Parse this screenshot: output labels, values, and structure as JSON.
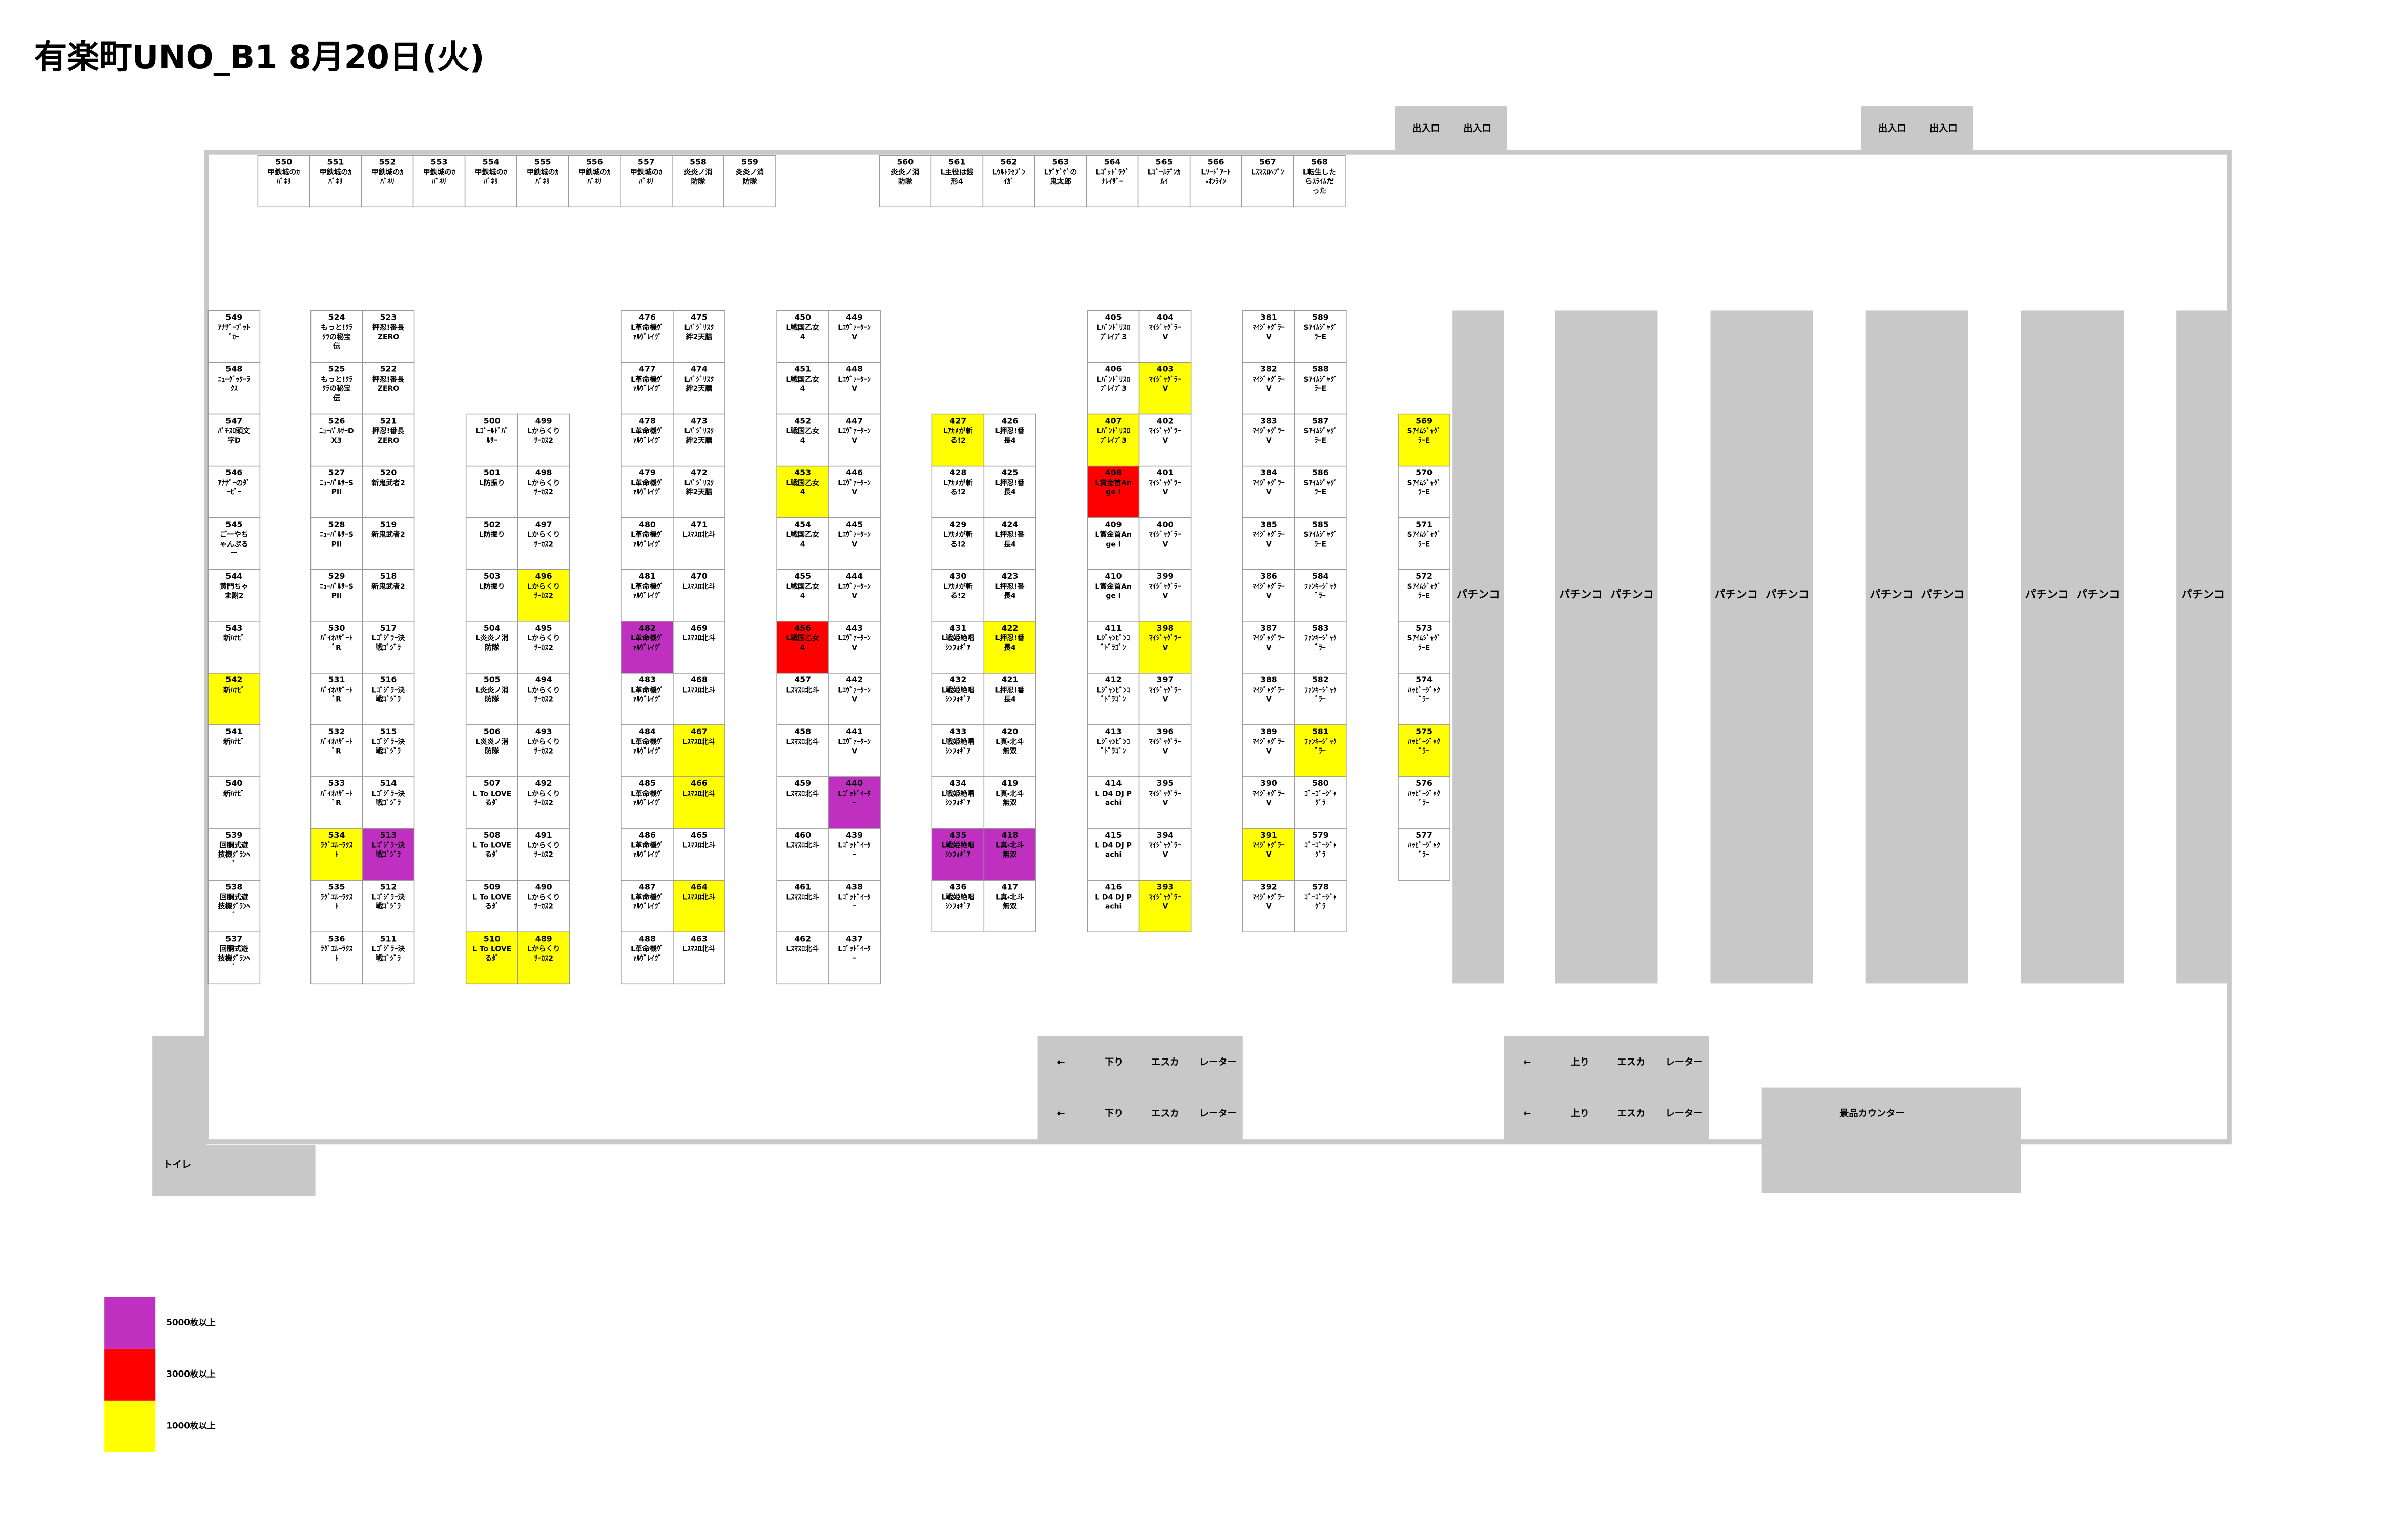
{
  "header": {
    "title": "有楽町UNO_B1 8月20日(火)"
  },
  "entrances": [
    {
      "labels": [
        "出入口",
        "出入口"
      ]
    },
    {
      "labels": [
        "出入口",
        "出入口"
      ]
    }
  ],
  "columns": [
    {
      "machines": [
        {
          "no": "550",
          "name": "甲鉄城のｶﾊﾞﾈﾘ"
        },
        {
          "no": "551",
          "name": "甲鉄城のｶﾊﾞﾈﾘ"
        },
        {
          "no": "552",
          "name": "甲鉄城のｶﾊﾞﾈﾘ"
        },
        {
          "no": "553",
          "name": "甲鉄城のｶﾊﾞﾈﾘ"
        },
        {
          "no": "554",
          "name": "甲鉄城のｶﾊﾞﾈﾘ"
        },
        {
          "no": "555",
          "name": "甲鉄城のｶﾊﾞﾈﾘ"
        },
        {
          "no": "556",
          "name": "甲鉄城のｶﾊﾞﾈﾘ"
        },
        {
          "no": "557",
          "name": "甲鉄城のｶﾊﾞﾈﾘ"
        },
        {
          "no": "558",
          "name": "炎炎ノ消防隊"
        },
        {
          "no": "559",
          "name": "炎炎ノ消防隊"
        }
      ]
    },
    {
      "machines": [
        {
          "no": "560",
          "name": "炎炎ノ消防隊"
        },
        {
          "no": "561",
          "name": "L主役は銭形4"
        },
        {
          "no": "562",
          "name": "Lｳﾙﾄﾗｾﾌﾞﾝｲｶﾞ"
        },
        {
          "no": "563",
          "name": "Lｹﾞｹﾞｹﾞの鬼太郎"
        },
        {
          "no": "564",
          "name": "Lｺﾞｯﾄﾞﾗｸﾞﾅﾚｲｻﾞｰ"
        },
        {
          "no": "565",
          "name": "Lｺﾞｰﾙﾃﾞﾝｶﾑｲ"
        },
        {
          "no": "566",
          "name": "Lｿｰﾄﾞｱｰﾄ・ｵﾝﾗｲﾝ"
        },
        {
          "no": "567",
          "name": "Lｽﾏｽﾛﾍﾌﾞﾝ"
        },
        {
          "no": "568",
          "name": "L転生したらｽﾗｲﾑだった"
        }
      ]
    },
    {
      "machines": [
        {
          "no": "549",
          "name": "ｱﾅｻﾞｰﾌﾟｯﾄﾞｶｰ"
        },
        {
          "no": "548",
          "name": "ﾆｭｰｸﾞｯﾀｰﾗｸｽ"
        },
        {
          "no": "547",
          "name": "ﾊﾟﾁｽﾛ頭文字D"
        },
        {
          "no": "546",
          "name": "ｱﾅｻﾞｰのﾀﾞｰﾋﾞｰ"
        },
        {
          "no": "545",
          "name": "ごーやちゃんぷるー"
        },
        {
          "no": "544",
          "name": "黄門ちゃま謝2"
        },
        {
          "no": "543",
          "name": "新ﾊﾅﾋﾞ"
        },
        {
          "no": "542",
          "name": "新ﾊﾅﾋﾞ",
          "color": "#ffff00"
        },
        {
          "no": "541",
          "name": "新ﾊﾅﾋﾞ"
        },
        {
          "no": "540",
          "name": "新ﾊﾅﾋﾞ"
        },
        {
          "no": "539",
          "name": "回胴式遊技機ｸﾞﾗﾝﾍﾞ"
        },
        {
          "no": "538",
          "name": "回胴式遊技機ｸﾞﾗﾝﾍﾞ"
        },
        {
          "no": "537",
          "name": "回胴式遊技機ｸﾞﾗﾝﾍﾞ"
        }
      ]
    },
    {
      "machines": [
        {
          "no": "524",
          "name": "もっと!ｸﾗｸﾗの秘宝伝"
        },
        {
          "no": "525",
          "name": "もっと!ｸﾗｸﾗの秘宝伝"
        },
        {
          "no": "526",
          "name": "ﾆｭｰﾊﾟﾙｻｰDX3"
        },
        {
          "no": "527",
          "name": "ﾆｭｰﾊﾟﾙｻｰSPII"
        },
        {
          "no": "528",
          "name": "ﾆｭｰﾊﾟﾙｻｰSPII"
        },
        {
          "no": "529",
          "name": "ﾆｭｰﾊﾟﾙｻｰSPII"
        },
        {
          "no": "530",
          "name": "ﾊﾞｲｵﾊｻﾞｰﾄﾞR"
        },
        {
          "no": "531",
          "name": "ﾊﾞｲｵﾊｻﾞｰﾄﾞR"
        },
        {
          "no": "532",
          "name": "ﾊﾞｲｵﾊｻﾞｰﾄﾞR"
        },
        {
          "no": "533",
          "name": "ﾊﾞｲｵﾊｻﾞｰﾄﾞR"
        },
        {
          "no": "534",
          "name": "ﾗｸﾞｴﾙｰﾗｸｽﾄ",
          "color": "#ffff00"
        },
        {
          "no": "535",
          "name": "ﾗｸﾞｴﾙｰﾗｸｽﾄ"
        },
        {
          "no": "536",
          "name": "ﾗｸﾞｴﾙｰﾗｸｽﾄ"
        }
      ]
    },
    {
      "machines": [
        {
          "no": "523",
          "name": "押忍!番長ZERO"
        },
        {
          "no": "522",
          "name": "押忍!番長ZERO"
        },
        {
          "no": "521",
          "name": "押忍!番長ZERO"
        },
        {
          "no": "520",
          "name": "新鬼武者2"
        },
        {
          "no": "519",
          "name": "新鬼武者2"
        },
        {
          "no": "518",
          "name": "新鬼武者2"
        },
        {
          "no": "517",
          "name": "Lｺﾞｼﾞﾗｰ決戦ｺﾞｼﾞﾗ"
        },
        {
          "no": "516",
          "name": "Lｺﾞｼﾞﾗｰ決戦ｺﾞｼﾞﾗ"
        },
        {
          "no": "515",
          "name": "Lｺﾞｼﾞﾗｰ決戦ｺﾞｼﾞﾗ"
        },
        {
          "no": "514",
          "name": "Lｺﾞｼﾞﾗｰ決戦ｺﾞｼﾞﾗ"
        },
        {
          "no": "513",
          "name": "Lｺﾞｼﾞﾗｰ決戦ｺﾞｼﾞﾗ",
          "color": "#c030c0"
        },
        {
          "no": "512",
          "name": "Lｺﾞｼﾞﾗｰ決戦ｺﾞｼﾞﾗ"
        },
        {
          "no": "511",
          "name": "Lｺﾞｼﾞﾗｰ決戦ｺﾞｼﾞﾗ"
        }
      ]
    },
    {
      "machines": [
        {
          "no": "500",
          "name": "Lｺﾞｰﾙﾄﾞﾊﾞﾙｻｰ"
        },
        {
          "no": "501",
          "name": "L防振り"
        },
        {
          "no": "502",
          "name": "L防振り"
        },
        {
          "no": "503",
          "name": "L防振り"
        },
        {
          "no": "504",
          "name": "L炎炎ノ消防隊"
        },
        {
          "no": "505",
          "name": "L炎炎ノ消防隊"
        },
        {
          "no": "506",
          "name": "L炎炎ノ消防隊"
        },
        {
          "no": "507",
          "name": "L To LOVEるﾀﾞ"
        },
        {
          "no": "508",
          "name": "L To LOVEるﾀﾞ"
        },
        {
          "no": "509",
          "name": "L To LOVEるﾀﾞ"
        },
        {
          "no": "510",
          "name": "L To LOVEるﾀﾞ",
          "color": "#ffff00"
        }
      ]
    },
    {
      "machines": [
        {
          "no": "499",
          "name": "Lからくりｻｰｶｽ2"
        },
        {
          "no": "498",
          "name": "Lからくりｻｰｶｽ2"
        },
        {
          "no": "497",
          "name": "Lからくりｻｰｶｽ2"
        },
        {
          "no": "496",
          "name": "Lからくりｻｰｶｽ2",
          "color": "#ffff00"
        },
        {
          "no": "495",
          "name": "Lからくりｻｰｶｽ2"
        },
        {
          "no": "494",
          "name": "Lからくりｻｰｶｽ2"
        },
        {
          "no": "493",
          "name": "Lからくりｻｰｶｽ2"
        },
        {
          "no": "492",
          "name": "Lからくりｻｰｶｽ2"
        },
        {
          "no": "491",
          "name": "Lからくりｻｰｶｽ2"
        },
        {
          "no": "490",
          "name": "Lからくりｻｰｶｽ2"
        },
        {
          "no": "489",
          "name": "Lからくりｻｰｶｽ2",
          "color": "#ffff00"
        }
      ]
    },
    {
      "machines": [
        {
          "no": "476",
          "name": "L革命機ｳﾞｧﾙｳﾞﾚｲｳﾞ"
        },
        {
          "no": "477",
          "name": "L革命機ｳﾞｧﾙｳﾞﾚｲｳﾞ"
        },
        {
          "no": "478",
          "name": "L革命機ｳﾞｧﾙｳﾞﾚｲｳﾞ"
        },
        {
          "no": "479",
          "name": "L革命機ｳﾞｧﾙｳﾞﾚｲｳﾞ"
        },
        {
          "no": "480",
          "name": "L革命機ｳﾞｧﾙｳﾞﾚｲｳﾞ"
        },
        {
          "no": "481",
          "name": "L革命機ｳﾞｧﾙｳﾞﾚｲｳﾞ"
        },
        {
          "no": "482",
          "name": "L革命機ｳﾞｧﾙｳﾞﾚｲｳﾞ",
          "color": "#c030c0"
        },
        {
          "no": "483",
          "name": "L革命機ｳﾞｧﾙｳﾞﾚｲｳﾞ"
        },
        {
          "no": "484",
          "name": "L革命機ｳﾞｧﾙｳﾞﾚｲｳﾞ"
        },
        {
          "no": "485",
          "name": "L革命機ｳﾞｧﾙｳﾞﾚｲｳﾞ"
        },
        {
          "no": "486",
          "name": "L革命機ｳﾞｧﾙｳﾞﾚｲｳﾞ"
        },
        {
          "no": "487",
          "name": "L革命機ｳﾞｧﾙｳﾞﾚｲｳﾞ"
        },
        {
          "no": "488",
          "name": "L革命機ｳﾞｧﾙｳﾞﾚｲｳﾞ"
        }
      ]
    },
    {
      "machines": [
        {
          "no": "475",
          "name": "Lﾊﾞｼﾞﾘｽｸ絆2天膳"
        },
        {
          "no": "474",
          "name": "Lﾊﾞｼﾞﾘｽｸ絆2天膳"
        },
        {
          "no": "473",
          "name": "Lﾊﾞｼﾞﾘｽｸ絆2天膳"
        },
        {
          "no": "472",
          "name": "Lﾊﾞｼﾞﾘｽｸ絆2天膳"
        },
        {
          "no": "471",
          "name": "Lｽﾏｽﾛ北斗"
        },
        {
          "no": "470",
          "name": "Lｽﾏｽﾛ北斗"
        },
        {
          "no": "469",
          "name": "Lｽﾏｽﾛ北斗"
        },
        {
          "no": "468",
          "name": "Lｽﾏｽﾛ北斗"
        },
        {
          "no": "467",
          "name": "Lｽﾏｽﾛ北斗",
          "color": "#ffff00"
        },
        {
          "no": "466",
          "name": "Lｽﾏｽﾛ北斗",
          "color": "#ffff00"
        },
        {
          "no": "465",
          "name": "Lｽﾏｽﾛ北斗"
        },
        {
          "no": "464",
          "name": "Lｽﾏｽﾛ北斗",
          "color": "#ffff00"
        },
        {
          "no": "463",
          "name": "Lｽﾏｽﾛ北斗"
        }
      ]
    },
    {
      "machines": [
        {
          "no": "450",
          "name": "L戦国乙女4"
        },
        {
          "no": "451",
          "name": "L戦国乙女4"
        },
        {
          "no": "452",
          "name": "L戦国乙女4"
        },
        {
          "no": "453",
          "name": "L戦国乙女4",
          "color": "#ffff00"
        },
        {
          "no": "454",
          "name": "L戦国乙女4"
        },
        {
          "no": "455",
          "name": "L戦国乙女4"
        },
        {
          "no": "456",
          "name": "L戦国乙女4",
          "color": "#ff0000"
        },
        {
          "no": "457",
          "name": "Lｽﾏｽﾛ北斗"
        },
        {
          "no": "458",
          "name": "Lｽﾏｽﾛ北斗"
        },
        {
          "no": "459",
          "name": "Lｽﾏｽﾛ北斗"
        },
        {
          "no": "460",
          "name": "Lｽﾏｽﾛ北斗"
        },
        {
          "no": "461",
          "name": "Lｽﾏｽﾛ北斗"
        },
        {
          "no": "462",
          "name": "Lｽﾏｽﾛ北斗"
        }
      ]
    },
    {
      "machines": [
        {
          "no": "449",
          "name": "LｴｳﾞｧｰﾀｰﾝV"
        },
        {
          "no": "448",
          "name": "LｴｳﾞｧｰﾀｰﾝV"
        },
        {
          "no": "447",
          "name": "LｴｳﾞｧｰﾀｰﾝV"
        },
        {
          "no": "446",
          "name": "LｴｳﾞｧｰﾀｰﾝV"
        },
        {
          "no": "445",
          "name": "LｴｳﾞｧｰﾀｰﾝV"
        },
        {
          "no": "444",
          "name": "LｴｳﾞｧｰﾀｰﾝV"
        },
        {
          "no": "443",
          "name": "LｴｳﾞｧｰﾀｰﾝV"
        },
        {
          "no": "442",
          "name": "LｴｳﾞｧｰﾀｰﾝV"
        },
        {
          "no": "441",
          "name": "LｴｳﾞｧｰﾀｰﾝV"
        },
        {
          "no": "440",
          "name": "Lｺﾞｯﾄﾞｲｰﾀｰ",
          "color": "#c030c0"
        },
        {
          "no": "439",
          "name": "Lｺﾞｯﾄﾞｲｰﾀｰ"
        },
        {
          "no": "438",
          "name": "Lｺﾞｯﾄﾞｲｰﾀｰ"
        },
        {
          "no": "437",
          "name": "Lｺﾞｯﾄﾞｲｰﾀｰ"
        }
      ]
    },
    {
      "machines": [
        {
          "no": "427",
          "name": "Lｱｶﾒが斬る!2",
          "color": "#ffff00"
        },
        {
          "no": "428",
          "name": "Lｱｶﾒが斬る!2"
        },
        {
          "no": "429",
          "name": "Lｱｶﾒが斬る!2"
        },
        {
          "no": "430",
          "name": "Lｱｶﾒが斬る!2"
        },
        {
          "no": "431",
          "name": "L戦姫絶唱ｼﾝﾌｫｷﾞｱ"
        },
        {
          "no": "432",
          "name": "L戦姫絶唱ｼﾝﾌｫｷﾞｱ"
        },
        {
          "no": "433",
          "name": "L戦姫絶唱ｼﾝﾌｫｷﾞｱ"
        },
        {
          "no": "434",
          "name": "L戦姫絶唱ｼﾝﾌｫｷﾞｱ"
        },
        {
          "no": "435",
          "name": "L戦姫絶唱ｼﾝﾌｫｷﾞｱ",
          "color": "#c030c0"
        },
        {
          "no": "436",
          "name": "L戦姫絶唱ｼﾝﾌｫｷﾞｱ"
        }
      ]
    },
    {
      "machines": [
        {
          "no": "426",
          "name": "L押忍!番長4"
        },
        {
          "no": "425",
          "name": "L押忍!番長4"
        },
        {
          "no": "424",
          "name": "L押忍!番長4"
        },
        {
          "no": "423",
          "name": "L押忍!番長4"
        },
        {
          "no": "422",
          "name": "L押忍!番長4",
          "color": "#ffff00"
        },
        {
          "no": "421",
          "name": "L押忍!番長4"
        },
        {
          "no": "420",
          "name": "L真・北斗無双"
        },
        {
          "no": "419",
          "name": "L真・北斗無双"
        },
        {
          "no": "418",
          "name": "L真・北斗無双",
          "color": "#c030c0"
        },
        {
          "no": "417",
          "name": "L真・北斗無双"
        }
      ]
    },
    {
      "machines": [
        {
          "no": "405",
          "name": "Lﾊﾞﾝﾄﾞﾘｽﾛﾌﾞﾚｲﾌﾞ3"
        },
        {
          "no": "406",
          "name": "Lﾊﾞﾝﾄﾞﾘｽﾛﾌﾞﾚｲﾌﾞ3"
        },
        {
          "no": "407",
          "name": "Lﾊﾞﾝﾄﾞﾘｽﾛﾌﾞﾚｲﾌﾞ3",
          "color": "#ffff00"
        },
        {
          "no": "408",
          "name": "L賞金首Ange I",
          "color": "#ff0000"
        },
        {
          "no": "409",
          "name": "L賞金首Ange I"
        },
        {
          "no": "410",
          "name": "L賞金首Ange I"
        },
        {
          "no": "411",
          "name": "Lｼﾞｬﾝﾋﾞﾝｺﾞﾄﾞﾗｺﾞﾝ"
        },
        {
          "no": "412",
          "name": "Lｼﾞｬﾝﾋﾞﾝｺﾞﾄﾞﾗｺﾞﾝ"
        },
        {
          "no": "413",
          "name": "Lｼﾞｬﾝﾋﾞﾝｺﾞﾄﾞﾗｺﾞﾝ"
        },
        {
          "no": "414",
          "name": "L D4 DJ Pachi"
        },
        {
          "no": "415",
          "name": "L D4 DJ Pachi"
        },
        {
          "no": "416",
          "name": "L D4 DJ Pachi"
        }
      ]
    },
    {
      "machines": [
        {
          "no": "404",
          "name": "ﾏｲｼﾞｬｸﾞﾗｰV"
        },
        {
          "no": "403",
          "name": "ﾏｲｼﾞｬｸﾞﾗｰV",
          "color": "#ffff00"
        },
        {
          "no": "402",
          "name": "ﾏｲｼﾞｬｸﾞﾗｰV"
        },
        {
          "no": "401",
          "name": "ﾏｲｼﾞｬｸﾞﾗｰV"
        },
        {
          "no": "400",
          "name": "ﾏｲｼﾞｬｸﾞﾗｰV"
        },
        {
          "no": "399",
          "name": "ﾏｲｼﾞｬｸﾞﾗｰV"
        },
        {
          "no": "398",
          "name": "ﾏｲｼﾞｬｸﾞﾗｰV",
          "color": "#ffff00"
        },
        {
          "no": "397",
          "name": "ﾏｲｼﾞｬｸﾞﾗｰV"
        },
        {
          "no": "396",
          "name": "ﾏｲｼﾞｬｸﾞﾗｰV"
        },
        {
          "no": "395",
          "name": "ﾏｲｼﾞｬｸﾞﾗｰV"
        },
        {
          "no": "394",
          "name": "ﾏｲｼﾞｬｸﾞﾗｰV"
        },
        {
          "no": "393",
          "name": "ﾏｲｼﾞｬｸﾞﾗｰV",
          "color": "#ffff00"
        }
      ]
    },
    {
      "machines": [
        {
          "no": "381",
          "name": "ﾏｲｼﾞｬｸﾞﾗｰV"
        },
        {
          "no": "382",
          "name": "ﾏｲｼﾞｬｸﾞﾗｰV"
        },
        {
          "no": "383",
          "name": "ﾏｲｼﾞｬｸﾞﾗｰV"
        },
        {
          "no": "384",
          "name": "ﾏｲｼﾞｬｸﾞﾗｰV"
        },
        {
          "no": "385",
          "name": "ﾏｲｼﾞｬｸﾞﾗｰV"
        },
        {
          "no": "386",
          "name": "ﾏｲｼﾞｬｸﾞﾗｰV"
        },
        {
          "no": "387",
          "name": "ﾏｲｼﾞｬｸﾞﾗｰV"
        },
        {
          "no": "388",
          "name": "ﾏｲｼﾞｬｸﾞﾗｰV"
        },
        {
          "no": "389",
          "name": "ﾏｲｼﾞｬｸﾞﾗｰV"
        },
        {
          "no": "390",
          "name": "ﾏｲｼﾞｬｸﾞﾗｰV"
        },
        {
          "no": "391",
          "name": "ﾏｲｼﾞｬｸﾞﾗｰV",
          "color": "#ffff00"
        },
        {
          "no": "392",
          "name": "ﾏｲｼﾞｬｸﾞﾗｰV"
        }
      ]
    },
    {
      "machines": [
        {
          "no": "589",
          "name": "SｱｲﾑｼﾞｬｸﾞﾗｰE"
        },
        {
          "no": "588",
          "name": "SｱｲﾑｼﾞｬｸﾞﾗｰE"
        },
        {
          "no": "587",
          "name": "SｱｲﾑｼﾞｬｸﾞﾗｰE"
        },
        {
          "no": "586",
          "name": "SｱｲﾑｼﾞｬｸﾞﾗｰE"
        },
        {
          "no": "585",
          "name": "SｱｲﾑｼﾞｬｸﾞﾗｰE"
        },
        {
          "no": "584",
          "name": "ﾌｧﾝｷｰｼﾞｬｸﾞﾗｰ"
        },
        {
          "no": "583",
          "name": "ﾌｧﾝｷｰｼﾞｬｸﾞﾗｰ"
        },
        {
          "no": "582",
          "name": "ﾌｧﾝｷｰｼﾞｬｸﾞﾗｰ"
        },
        {
          "no": "581",
          "name": "ﾌｧﾝｷｰｼﾞｬｸﾞﾗｰ",
          "color": "#ffff00"
        },
        {
          "no": "580",
          "name": "ｺﾞｰｺﾞｰｼﾞｬｸﾞﾗ"
        },
        {
          "no": "579",
          "name": "ｺﾞｰｺﾞｰｼﾞｬｸﾞﾗ"
        },
        {
          "no": "578",
          "name": "ｺﾞｰｺﾞｰｼﾞｬｸﾞﾗ"
        }
      ]
    },
    {
      "machines": [
        {
          "no": "569",
          "name": "SｱｲﾑｼﾞｬｸﾞﾗｰE",
          "color": "#ffff00"
        },
        {
          "no": "570",
          "name": "SｱｲﾑｼﾞｬｸﾞﾗｰE"
        },
        {
          "no": "571",
          "name": "SｱｲﾑｼﾞｬｸﾞﾗｰE"
        },
        {
          "no": "572",
          "name": "SｱｲﾑｼﾞｬｸﾞﾗｰE"
        },
        {
          "no": "573",
          "name": "SｱｲﾑｼﾞｬｸﾞﾗｰE"
        },
        {
          "no": "574",
          "name": "ﾊｯﾋﾟｰｼﾞｬｸﾞﾗｰ"
        },
        {
          "no": "575",
          "name": "ﾊｯﾋﾟｰｼﾞｬｸﾞﾗｰ",
          "color": "#ffff00"
        },
        {
          "no": "576",
          "name": "ﾊｯﾋﾟｰｼﾞｬｸﾞﾗｰ"
        },
        {
          "no": "577",
          "name": "ﾊｯﾋﾟｰｼﾞｬｸﾞﾗｰ"
        }
      ]
    }
  ],
  "islands": [
    {
      "labels": [
        "パチンコ"
      ]
    },
    {
      "labels": [
        "パチンコ",
        "パチンコ"
      ]
    },
    {
      "labels": [
        "パチンコ",
        "パチンコ"
      ]
    },
    {
      "labels": [
        "パチンコ",
        "パチンコ"
      ]
    },
    {
      "labels": [
        "パチンコ",
        "パチンコ"
      ]
    },
    {
      "labels": [
        "パチンコ"
      ]
    }
  ],
  "escalators": [
    {
      "arrow": "←",
      "direction": "下り",
      "word1": "エスカ",
      "word2": "レーター"
    },
    {
      "arrow": "←",
      "direction": "下り",
      "word1": "エスカ",
      "word2": "レーター"
    },
    {
      "arrow": "←",
      "direction": "上り",
      "word1": "エスカ",
      "word2": "レーター"
    },
    {
      "arrow": "←",
      "direction": "上り",
      "word1": "エスカ",
      "word2": "レーター"
    }
  ],
  "prize_counter": "景品カウンター",
  "toilet": "トイレ",
  "legend": [
    {
      "label": "5000枚以上",
      "color": "#c030c0"
    },
    {
      "label": "3000枚以上",
      "color": "#ff0000"
    },
    {
      "label": "1000枚以上",
      "color": "#ffff00"
    }
  ]
}
